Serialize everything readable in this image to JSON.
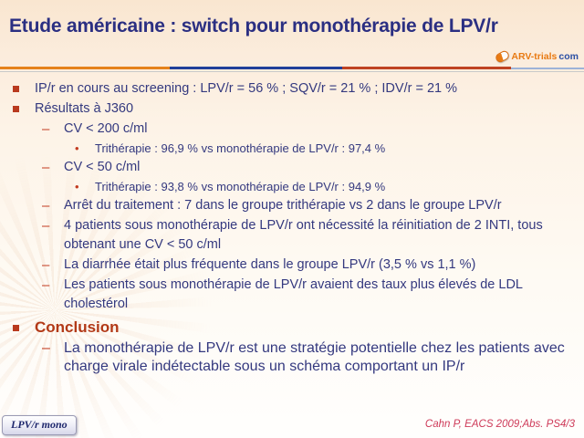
{
  "slide": {
    "title": "Etude américaine : switch pour monothérapie de LPV/r",
    "logo": {
      "name": "ARV-trials.com",
      "part1": "ARV-trials",
      "part2": "com"
    },
    "icons": {
      "dash": "–",
      "dot": "•"
    },
    "content": {
      "items": [
        {
          "level": 1,
          "text": "IP/r en cours au screening : LPV/r = 56 % ; SQV/r = 21 % ; IDV/r = 21 %"
        },
        {
          "level": 1,
          "text": "Résultats à J360"
        },
        {
          "level": 2,
          "text": "CV < 200 c/ml"
        },
        {
          "level": 3,
          "text": "Trithérapie : 96,9 % vs monothérapie de LPV/r : 97,4 %"
        },
        {
          "level": 2,
          "text": "CV < 50 c/ml"
        },
        {
          "level": 3,
          "text": "Trithérapie : 93,8 % vs monothérapie de LPV/r : 94,9 %"
        },
        {
          "level": 2,
          "text": "Arrêt du traitement : 7 dans le groupe trithérapie vs 2 dans le groupe LPV/r"
        },
        {
          "level": 2,
          "text": "4 patients sous monothérapie de LPV/r ont nécessité la réinitiation de 2 INTI, tous obtenant une CV < 50 c/ml"
        },
        {
          "level": 2,
          "text": "La diarrhée était plus fréquente dans le groupe LPV/r (3,5 % vs 1,1 %)"
        },
        {
          "level": 2,
          "text": "Les patients sous monothérapie de LPV/r avaient des taux plus élevés de LDL cholestérol"
        },
        {
          "level": 1,
          "style": "conclusion-header",
          "text": "Conclusion"
        },
        {
          "level": 2,
          "style": "conclusion-body",
          "text": "La monothérapie de LPV/r est une stratégie potentielle chez les patients avec charge virale indétectable sous un schéma comportant un IP/r"
        }
      ]
    },
    "footer": {
      "badge": "LPV/r mono",
      "reference": "Cahn P, EACS 2009;Abs. PS4/3"
    },
    "colors": {
      "title": "#2b2f82",
      "body_text": "#34397f",
      "bullet_marker": "#b93a1e",
      "conclusion": "#b23917",
      "reference": "#ce3a58",
      "rule_orange": "#e5821b",
      "rule_blue": "#20409a",
      "rule_rust": "#bf4323",
      "logo_orange": "#e87a12",
      "logo_blue": "#2b4fa4",
      "background_top": "#f9e6d0"
    }
  }
}
